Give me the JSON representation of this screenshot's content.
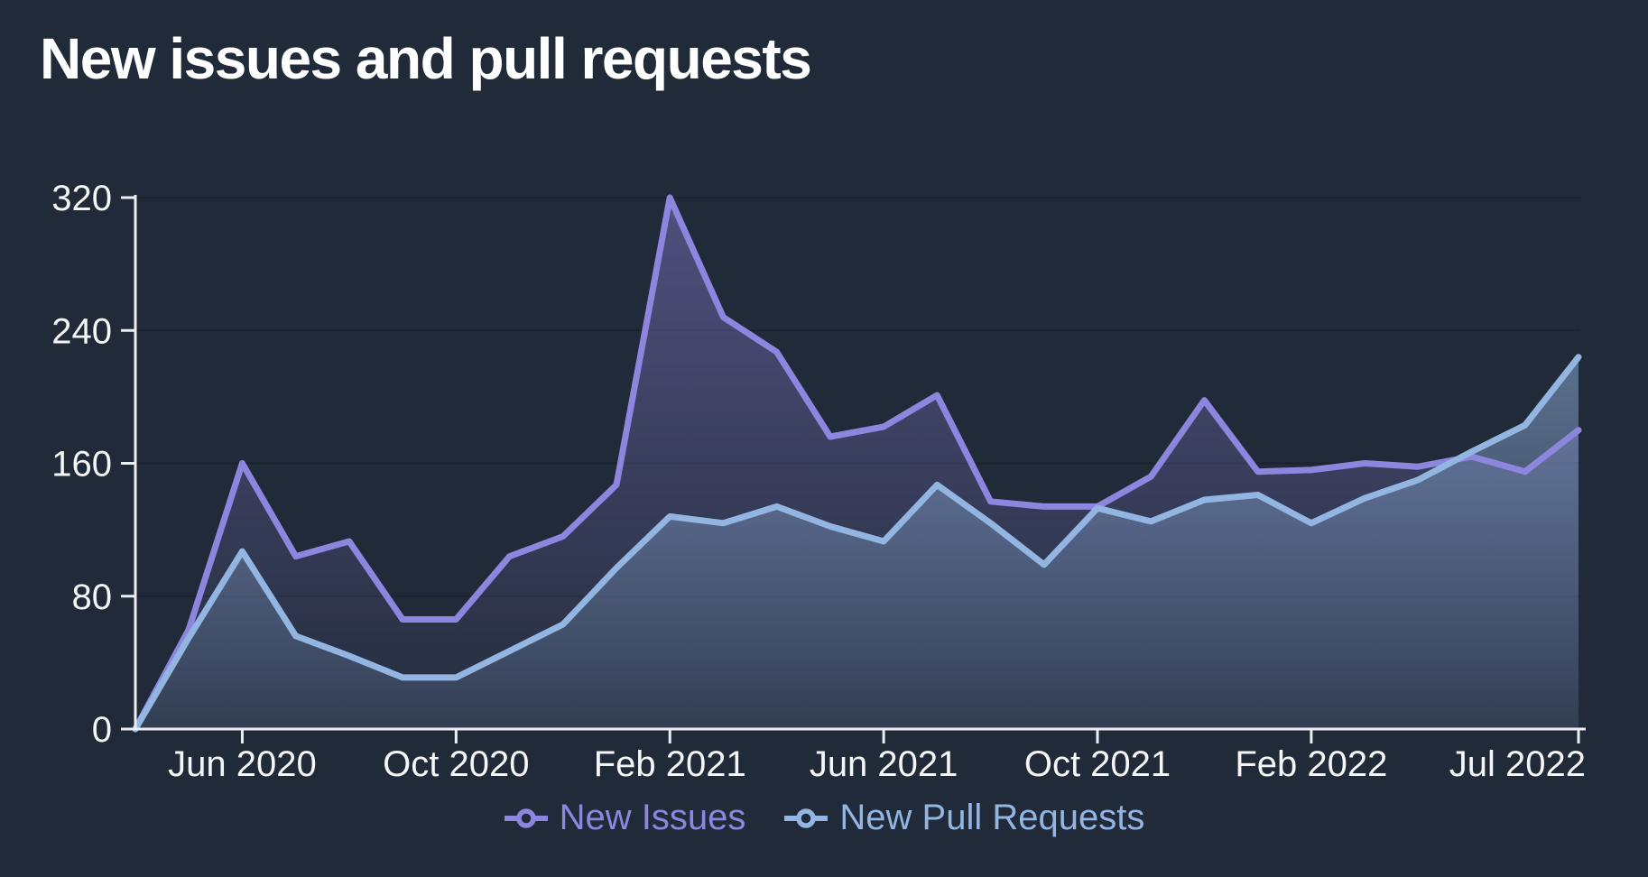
{
  "page": {
    "background": "#212A38"
  },
  "header": {
    "title": "New issues and pull requests"
  },
  "axes": {
    "color": "#EDEFF3",
    "label_color": "#F5F6F8",
    "grid_color": "#1B2230"
  },
  "legend": [
    {
      "label": "New Issues",
      "color": "#8D86DF"
    },
    {
      "label": "New Pull Requests",
      "color": "#93B5E2"
    }
  ],
  "chart_data": {
    "type": "area",
    "title": "New issues and pull requests",
    "x": [
      "Apr 2020",
      "May 2020",
      "Jun 2020",
      "Jul 2020",
      "Aug 2020",
      "Sep 2020",
      "Oct 2020",
      "Nov 2020",
      "Dec 2020",
      "Jan 2021",
      "Feb 2021",
      "Mar 2021",
      "Apr 2021",
      "May 2021",
      "Jun 2021",
      "Jul 2021",
      "Aug 2021",
      "Sep 2021",
      "Oct 2021",
      "Nov 2021",
      "Dec 2021",
      "Jan 2022",
      "Feb 2022",
      "Mar 2022",
      "Apr 2022",
      "May 2022",
      "Jun 2022",
      "Jul 2022"
    ],
    "series": [
      {
        "name": "New Issues",
        "color": "#8D86DF",
        "area_alpha_top": 0.42,
        "area_alpha_bottom": 0.03,
        "values": [
          0,
          60,
          160,
          104,
          113,
          66,
          66,
          104,
          116,
          147,
          320,
          248,
          227,
          176,
          182,
          201,
          137,
          134,
          134,
          152,
          198,
          155,
          156,
          160,
          158,
          164,
          155,
          180
        ]
      },
      {
        "name": "New Pull Requests",
        "color": "#93B5E2",
        "area_alpha_top": 0.5,
        "area_alpha_bottom": 0.12,
        "values": [
          0,
          55,
          107,
          56,
          44,
          31,
          31,
          47,
          63,
          97,
          128,
          124,
          134,
          122,
          113,
          147,
          124,
          99,
          133,
          125,
          138,
          141,
          124,
          139,
          150,
          167,
          183,
          224
        ]
      }
    ],
    "ylim": [
      0,
      320
    ],
    "y_ticks": [
      0,
      80,
      160,
      240,
      320
    ],
    "x_tick_labels": [
      "Jun 2020",
      "Oct 2020",
      "Feb 2021",
      "Jun 2021",
      "Oct 2021",
      "Feb 2022",
      "Jul 2022"
    ],
    "x_tick_indices": [
      2,
      6,
      10,
      14,
      18,
      22,
      27
    ],
    "grid": true,
    "legend_position": "bottom"
  }
}
